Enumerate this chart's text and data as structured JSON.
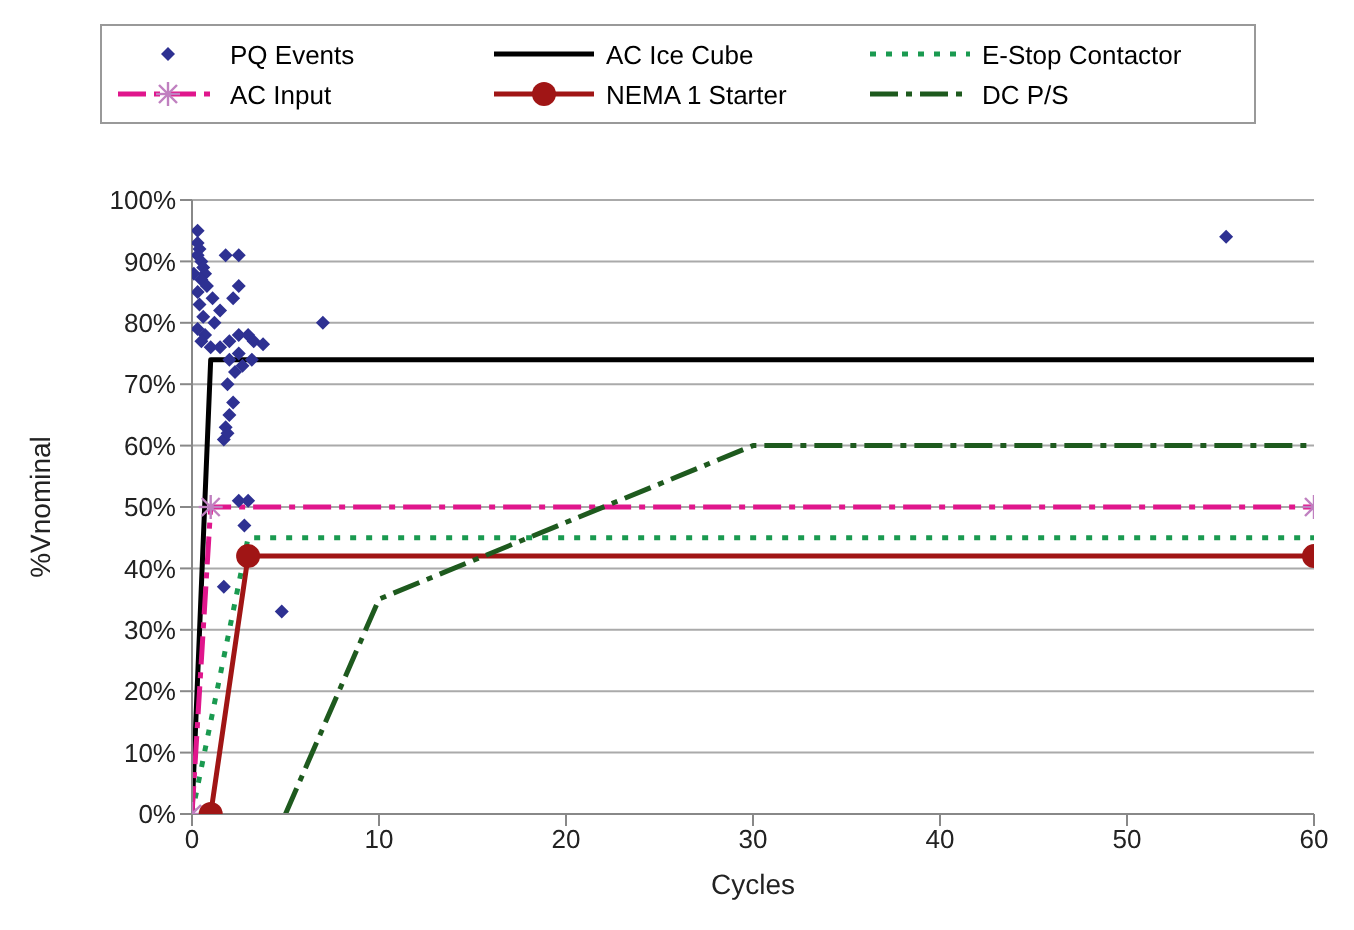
{
  "chart_data": {
    "type": "line",
    "xlabel": "Cycles",
    "ylabel": "%Vnominal",
    "xlim": [
      0,
      60
    ],
    "xticks": [
      0,
      10,
      20,
      30,
      40,
      50,
      60
    ],
    "ylim": [
      0,
      100
    ],
    "yticks": [
      {
        "value": 0,
        "label": "0%"
      },
      {
        "value": 10,
        "label": "10%"
      },
      {
        "value": 20,
        "label": "20%"
      },
      {
        "value": 30,
        "label": "30%"
      },
      {
        "value": 40,
        "label": "40%"
      },
      {
        "value": 50,
        "label": "50%"
      },
      {
        "value": 60,
        "label": "60%"
      },
      {
        "value": 70,
        "label": "70%"
      },
      {
        "value": 80,
        "label": "80%"
      },
      {
        "value": 90,
        "label": "90%"
      },
      {
        "value": 100,
        "label": "100%"
      }
    ],
    "grid": "y",
    "legend": "top",
    "series": [
      {
        "name": "PQ Events",
        "type": "scatter",
        "marker": "diamond",
        "color": "#2e3192",
        "x": [
          0.3,
          0.3,
          0.4,
          0.3,
          0.5,
          0.6,
          0.1,
          0.7,
          0.5,
          0.8,
          0.3,
          1.1,
          0.4,
          1.5,
          0.6,
          1.2,
          0.3,
          0.7,
          0.5,
          1.0,
          1.8,
          2.5,
          1.5,
          2.0,
          2.5,
          3.0,
          3.3,
          3.8,
          2.5,
          2.0,
          2.7,
          1.9,
          2.2,
          2.0,
          1.8,
          1.7,
          2.5,
          2.2,
          7.0,
          55.3,
          2.5,
          3.0,
          2.8,
          1.7,
          4.8,
          2.3,
          1.9,
          3.2
        ],
        "values": [
          95,
          93,
          92,
          91,
          90,
          89,
          88,
          88,
          87,
          86,
          85,
          84,
          83,
          82,
          81,
          80,
          79,
          78,
          77,
          76,
          91,
          91,
          76,
          77,
          78,
          78,
          77,
          76.5,
          75,
          74,
          73,
          70,
          67,
          65,
          63,
          61,
          86,
          84,
          80,
          94,
          51,
          51,
          47,
          37,
          33,
          72,
          62,
          74
        ]
      },
      {
        "name": "AC Ice Cube",
        "marker": "none",
        "line_style": "solid",
        "color": "#000000",
        "x": [
          0,
          1,
          60
        ],
        "values": [
          0,
          74,
          74
        ]
      },
      {
        "name": "E-Stop Contactor",
        "marker": "none",
        "line_style": "dotted",
        "color": "#1a9a50",
        "x": [
          0,
          3,
          60
        ],
        "values": [
          0,
          45,
          45
        ]
      },
      {
        "name": "AC Input",
        "marker": "cross",
        "line_style": "dashed",
        "color": "#e0168c",
        "x": [
          0,
          1,
          60
        ],
        "values": [
          0,
          50,
          50
        ]
      },
      {
        "name": "NEMA 1 Starter",
        "marker": "circle",
        "line_style": "solid",
        "color": "#a01515",
        "x": [
          1,
          3,
          60
        ],
        "values": [
          0,
          42,
          42
        ]
      },
      {
        "name": "DC P/S",
        "marker": "none",
        "line_style": "dashed",
        "color": "#1e5a1e",
        "x": [
          5,
          10,
          30,
          60
        ],
        "values": [
          0,
          35,
          60,
          60
        ]
      }
    ]
  }
}
